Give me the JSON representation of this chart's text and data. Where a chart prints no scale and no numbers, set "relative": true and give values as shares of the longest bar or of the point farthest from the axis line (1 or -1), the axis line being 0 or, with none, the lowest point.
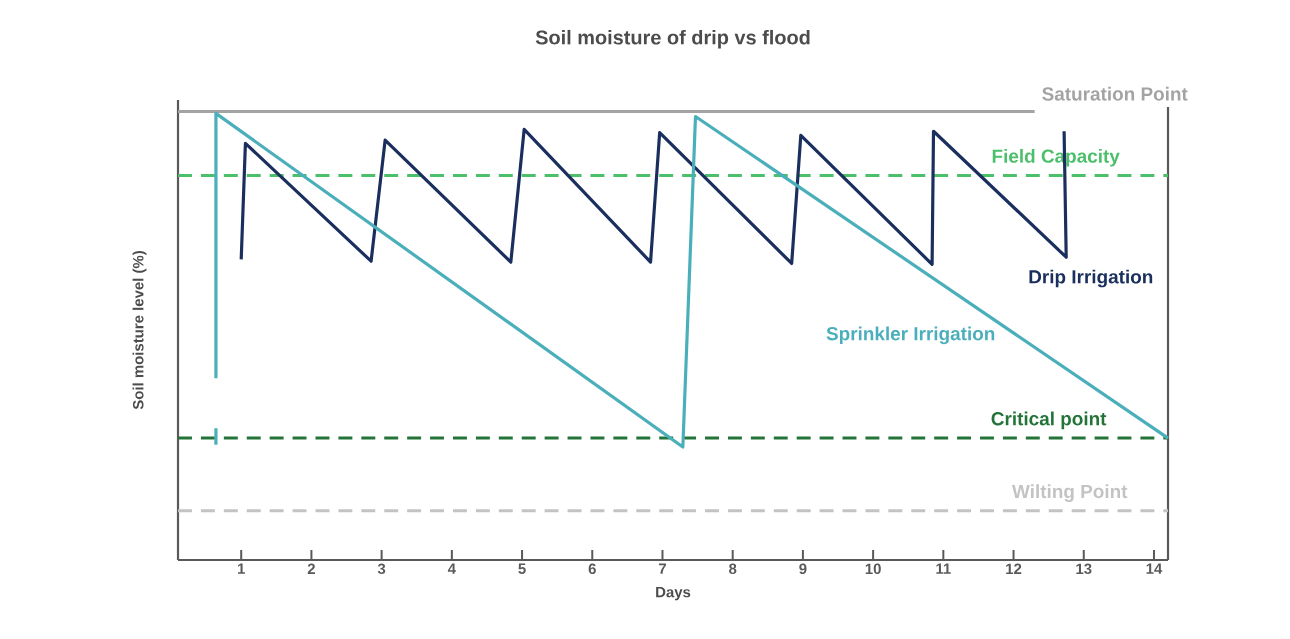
{
  "chart_data": {
    "type": "line",
    "title": "Soil moisture of drip vs flood",
    "xlabel": "Days",
    "ylabel": "Soil moisture level (%)",
    "relative": true,
    "tick_labels": "x",
    "grid": false,
    "xlim": [
      0.1,
      14.2
    ],
    "xticks": [
      1,
      2,
      3,
      4,
      5,
      6,
      7,
      8,
      9,
      10,
      11,
      12,
      13,
      14
    ],
    "series": [
      {
        "name": "Drip Irrigation",
        "color": "#1b2f5e",
        "x": [
          1.0,
          1.06,
          2.85,
          3.05,
          4.84,
          5.03,
          6.83,
          6.96,
          8.84,
          8.97,
          10.84,
          10.86,
          12.75,
          12.72
        ],
        "values": [
          0.673,
          0.933,
          0.669,
          0.94,
          0.667,
          0.964,
          0.667,
          0.957,
          0.664,
          0.951,
          0.662,
          0.96,
          0.678,
          0.96
        ]
      },
      {
        "name": "Sprinkler Irrigation",
        "color": "#4aafbb",
        "x": [
          0.64,
          0.64,
          null,
          0.64,
          0.64,
          7.29,
          7.47,
          14.2
        ],
        "values": [
          0.258,
          0.295,
          null,
          0.407,
          1.0,
          0.253,
          0.993,
          0.273
        ]
      }
    ],
    "ref_lines": [
      {
        "axis": "y",
        "value": 1.004,
        "label": "Saturation Point",
        "color": "#a3a3a3",
        "line_style": "solid"
      },
      {
        "axis": "y",
        "value": 0.861,
        "label": "Field Capacity",
        "color": "#4cbf6b",
        "line_style": "dashed"
      },
      {
        "axis": "y",
        "value": 0.273,
        "label": "Critical point",
        "color": "#24743a",
        "line_style": "dashed"
      },
      {
        "axis": "y",
        "value": 0.11,
        "label": "Wilting Point",
        "color": "#c3c3c3",
        "line_style": "dashed"
      }
    ]
  }
}
